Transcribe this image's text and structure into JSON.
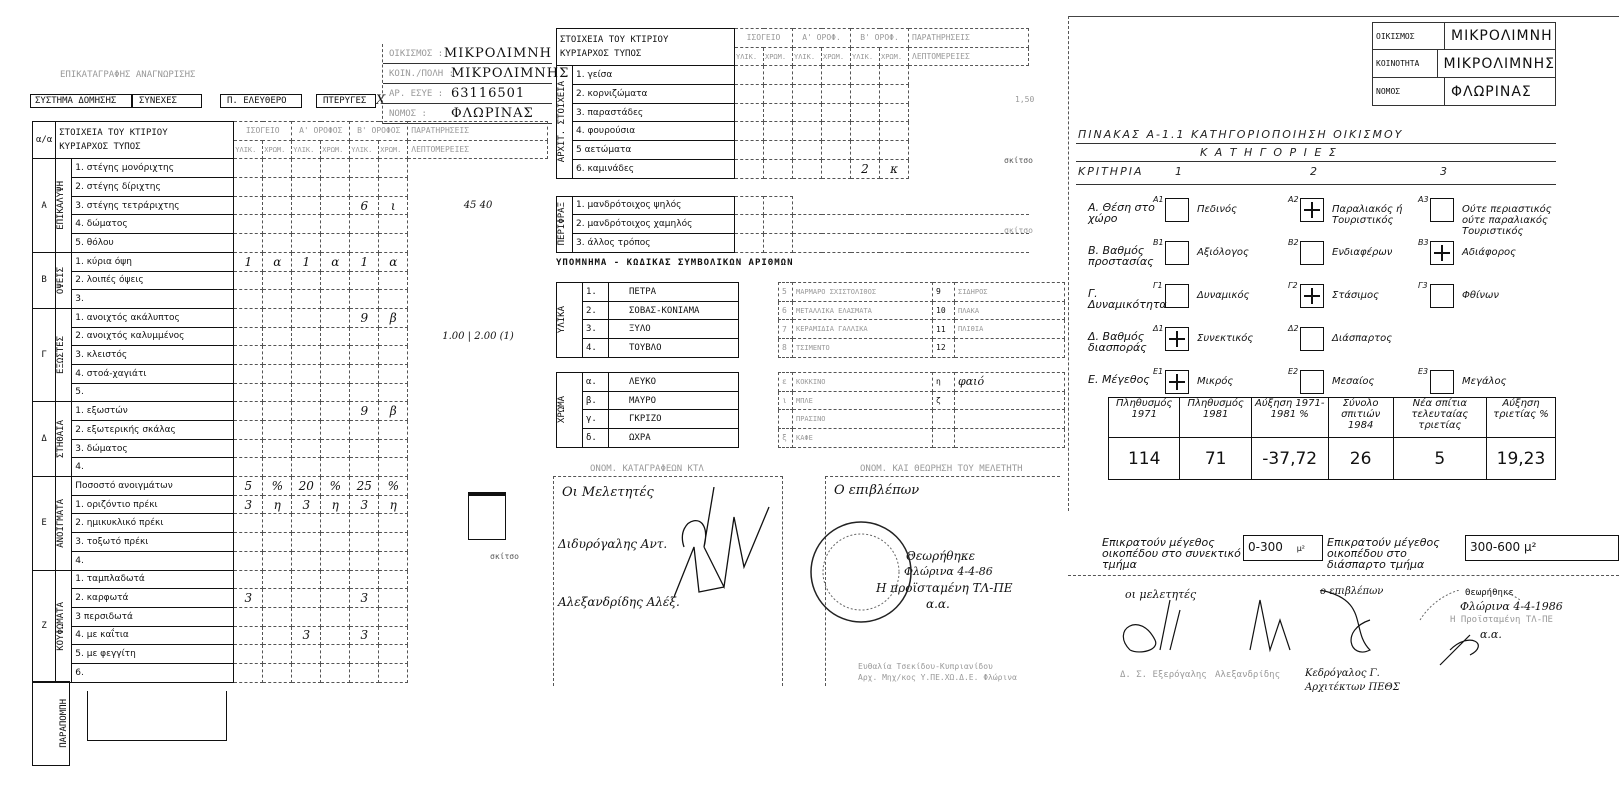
{
  "left": {
    "title": "ΕΠΙΚΑΤΑΓΡΑΦΗΣ ΑΝΑΓΝΩΡΙΣΗΣ",
    "system_label": "ΣΥΣΤΗΜΑ ΔΟΜΗΣΗΣ",
    "options": [
      "ΣΥΝΕΧΕΣ",
      "Π. ΕΛΕΥΘΕΡΟ",
      "ΠΤΕΡΥΓΕΣ"
    ],
    "option_mark": "X",
    "info": [
      {
        "label": "ΟΙΚΙΣΜΟΣ :",
        "value": "ΜΙΚΡΟΛΙΜΝΗ"
      },
      {
        "label": "ΚΟΙΝ./ΠΟΛΗ :",
        "value": "ΜΙΚΡΟΛΙΜΝΗΣ"
      },
      {
        "label": "ΑΡ. ΕΣΥΕ :",
        "value": "63116501"
      },
      {
        "label": "ΝΟΜΟΣ :",
        "value": "ΦΛΩΡΙΝΑΣ"
      }
    ],
    "hdr": {
      "aa": "α/α",
      "s1": "ΣΤΟΙΧΕΙΑ ΤΟΥ ΚΤΙΡΙΟΥ",
      "s2": "ΚΥΡΙΑΡΧΟΣ ΤΥΠΟΣ",
      "floors": [
        "ΙΣΟΓΕΙΟ",
        "Α' ΟΡΟΦΟΣ",
        "Β' ΟΡΟΦΟΣ"
      ],
      "sub": [
        "ΥΛΙΚ.",
        "ΧΡΩΜ."
      ],
      "rem1": "ΠΑΡΑΤΗΡΗΣΕΙΣ",
      "rem2": "ΛΕΠΤΟΜΕΡΕΙΕΣ"
    },
    "groups": [
      {
        "letter": "Α",
        "name": "ΕΠΙΚΑΛΥΨΗ",
        "rows": [
          {
            "label": "1. στέγης μονόριχτης",
            "v": [
              "",
              "",
              "",
              "",
              "",
              ""
            ]
          },
          {
            "label": "2. στέγης δίριχτης",
            "v": [
              "",
              "",
              "",
              "",
              "",
              ""
            ]
          },
          {
            "label": "3. στέγης τετράριχτης",
            "v": [
              "",
              "",
              "",
              "",
              "6",
              "ι"
            ],
            "rem": "45   40"
          },
          {
            "label": "4. δώματος",
            "v": [
              "",
              "",
              "",
              "",
              "",
              ""
            ]
          },
          {
            "label": "5. θόλου",
            "v": [
              "",
              "",
              "",
              "",
              "",
              ""
            ]
          }
        ]
      },
      {
        "letter": "Β",
        "name": "ΟΨΕΙΣ",
        "rows": [
          {
            "label": "1. κύρια όψη",
            "v": [
              "1",
              "α",
              "1",
              "α",
              "1",
              "α"
            ]
          },
          {
            "label": "2. λοιπές όψεις",
            "v": [
              "",
              "",
              "",
              "",
              "",
              ""
            ]
          },
          {
            "label": "3.",
            "v": [
              "",
              "",
              "",
              "",
              "",
              ""
            ]
          }
        ]
      },
      {
        "letter": "Γ",
        "name": "ΕΞΩΣΤΕΣ",
        "rows": [
          {
            "label": "1. ανοιχτός ακάλυπτος",
            "v": [
              "",
              "",
              "",
              "",
              "9",
              "β"
            ]
          },
          {
            "label": "2. ανοιχτός καλυμμένος",
            "v": [
              "",
              "",
              "",
              "",
              "",
              ""
            ],
            "rem": "1.00 | 2.00  (1)"
          },
          {
            "label": "3. κλειστός",
            "v": [
              "",
              "",
              "",
              "",
              "",
              ""
            ]
          },
          {
            "label": "4. στοά-χαγιάτι",
            "v": [
              "",
              "",
              "",
              "",
              "",
              ""
            ]
          },
          {
            "label": "5.",
            "v": [
              "",
              "",
              "",
              "",
              "",
              ""
            ]
          }
        ]
      },
      {
        "letter": "Δ",
        "name": "ΣΤΗΘΑΙΑ",
        "rows": [
          {
            "label": "1. εξωστών",
            "v": [
              "",
              "",
              "",
              "",
              "9",
              "β"
            ]
          },
          {
            "label": "2. εξωτερικής σκάλας",
            "v": [
              "",
              "",
              "",
              "",
              "",
              ""
            ]
          },
          {
            "label": "3. δώματος",
            "v": [
              "",
              "",
              "",
              "",
              "",
              ""
            ]
          },
          {
            "label": "4.",
            "v": [
              "",
              "",
              "",
              "",
              "",
              ""
            ]
          }
        ]
      },
      {
        "letter": "Ε",
        "name": "ΑΝΟΙΓΜΑΤΑ",
        "rows": [
          {
            "label": "Ποσοστό ανοιγμάτων",
            "v": [
              "5",
              "%",
              "20",
              "%",
              "25",
              "%"
            ]
          },
          {
            "label": "1. οριζόντιο πρέκι",
            "v": [
              "3",
              "η",
              "3",
              "η",
              "3",
              "η"
            ]
          },
          {
            "label": "2. ημικυκλικό πρέκι",
            "v": [
              "",
              "",
              "",
              "",
              "",
              ""
            ]
          },
          {
            "label": "3. τοξωτό πρέκι",
            "v": [
              "",
              "",
              "",
              "",
              "",
              ""
            ]
          },
          {
            "label": "4.",
            "v": [
              "",
              "",
              "",
              "",
              "",
              ""
            ]
          }
        ]
      },
      {
        "letter": "Ζ",
        "name": "ΚΟΥΦΩΜΑΤΑ",
        "rows": [
          {
            "label": "1. ταμπλαδωτά",
            "v": [
              "",
              "",
              "",
              "",
              "",
              ""
            ]
          },
          {
            "label": "2. καρφωτά",
            "v": [
              "3",
              "",
              "",
              "",
              "3",
              ""
            ]
          },
          {
            "label": "3 περσιδωτά",
            "v": [
              "",
              "",
              "",
              "",
              "",
              ""
            ]
          },
          {
            "label": "4. με καΐτια",
            "v": [
              "",
              "",
              "3",
              "",
              "3",
              ""
            ]
          },
          {
            "label": "5. με φεγγίτη",
            "v": [
              "",
              "",
              "",
              "",
              "",
              ""
            ]
          },
          {
            "label": "6.",
            "v": [
              "",
              "",
              "",
              "",
              "",
              ""
            ]
          }
        ]
      }
    ],
    "footer_group": "ΠΑΡΑΠΟΜΠΗ",
    "sketch_label": "σκίτσο"
  },
  "middle": {
    "hdr": {
      "s1": "ΣΤΟΙΧΕΙΑ ΤΟΥ ΚΤΙΡΙΟΥ",
      "s2": "ΚΥΡΙΑΡΧΟΣ ΤΥΠΟΣ",
      "floors": [
        "ΙΣΟΓΕΙΟ",
        "Α' ΟΡΟΦ.",
        "Β' ΟΡΟΦ."
      ],
      "sub": [
        "ΥΛΙΚ.",
        "ΧΡΩΜ."
      ],
      "rem1": "ΠΑΡΑΤΗΡΗΣΕΙΣ",
      "rem2": "ΛΕΠΤΟΜΕΡΕΙΕΣ"
    },
    "groups": [
      {
        "name": "ΑΡΧΙΤ. ΣΤΟΙΧΕΙΑ",
        "rows": [
          {
            "label": "1. γείσα",
            "v": [
              "",
              "",
              "",
              "",
              "",
              ""
            ]
          },
          {
            "label": "2. κορνιζώματα",
            "v": [
              "",
              "",
              "",
              "",
              "",
              ""
            ]
          },
          {
            "label": "3. παραστάδες",
            "v": [
              "",
              "",
              "",
              "",
              "",
              ""
            ]
          },
          {
            "label": "4. φουρούσια",
            "v": [
              "",
              "",
              "",
              "",
              "",
              ""
            ]
          },
          {
            "label": "5 αετώματα",
            "v": [
              "",
              "",
              "",
              "",
              "",
              ""
            ]
          },
          {
            "label": "6. καμινάδες",
            "v": [
              "",
              "",
              "",
              "",
              "2",
              "κ"
            ]
          }
        ]
      },
      {
        "name": "ΠΕΡΙΦΡΑΞ",
        "rows": [
          {
            "label": "1. μανδρότοιχος ψηλός",
            "v": [
              "",
              ""
            ]
          },
          {
            "label": "2. μανδρότοιχος χαμηλός",
            "v": [
              "",
              ""
            ]
          },
          {
            "label": "3. άλλος τρόπος",
            "v": [
              "",
              ""
            ]
          }
        ]
      }
    ],
    "sketch_label": "σκίτσο",
    "chimney_note": "1,50",
    "legend_title": "ΥΠΟΜΝΗΜΑ - ΚΩΔΙΚΑΣ ΣΥΜΒΟΛΙΚΩΝ ΑΡΙΘΜΩΝ",
    "materials": {
      "name": "ΥΛΙΚΑ",
      "rows": [
        {
          "n": "1.",
          "v": "ΠΕΤΡΑ"
        },
        {
          "n": "2.",
          "v": "ΣΟΒΑΣ-ΚΟΝΙΑΜΑ"
        },
        {
          "n": "3.",
          "v": "ΞΥΛΟ"
        },
        {
          "n": "4.",
          "v": "ΤΟΥΒΛΟ"
        }
      ],
      "extra": [
        {
          "n": "5",
          "v": "ΜΑΡΜΑΡΟ ΣΧΙΣΤΟΛΙΘΟΣ"
        },
        {
          "n": "6",
          "v": "ΜΕΤΑΛΛΙΚΑ ΕΛΑΣΜΑΤΑ"
        },
        {
          "n": "7",
          "v": "ΚΕΡΑΜΙΔΙΑ ΓΑΛΛΙΚΑ"
        },
        {
          "n": "8",
          "v": "ΤΣΙΜΕΝΤΟ"
        }
      ],
      "extra2": [
        {
          "n": "9",
          "v": "ΣΙΔΗΡΟΣ"
        },
        {
          "n": "10",
          "v": "ΠΛΑΚΑ"
        },
        {
          "n": "11",
          "v": "ΠΛΙΘΙΑ"
        },
        {
          "n": "12",
          "v": ""
        }
      ]
    },
    "colors": {
      "name": "ΧΡΩΜΑ",
      "rows": [
        {
          "n": "α.",
          "v": "ΛΕΥΚΟ"
        },
        {
          "n": "β.",
          "v": "ΜΑΥΡΟ"
        },
        {
          "n": "γ.",
          "v": "ΓΚΡΙΖΟ"
        },
        {
          "n": "δ.",
          "v": "ΩΧΡΑ"
        }
      ],
      "extra": [
        {
          "n": "ε",
          "v": "ΚΟΚΚΙΝΟ"
        },
        {
          "n": "ι",
          "v": "ΜΠΛΕ"
        },
        {
          "n": "",
          "v": "ΠΡΑΣΙΝΟ"
        },
        {
          "n": "ξ",
          "v": "ΚΑΦΕ"
        }
      ],
      "extra2": [
        {
          "n": "η",
          "v": "φαιό"
        },
        {
          "n": "ζ",
          "v": ""
        },
        {
          "n": "",
          "v": ""
        },
        {
          "n": "",
          "v": ""
        }
      ]
    },
    "sig_left_title": "ΟΝΟΜ. ΚΑΤΑΓΡΑΦΕΩΝ ΚΤΛ",
    "sig_left_lines": [
      "Οι Μελετητές",
      "Διδυρόγαλης Αντ.",
      "Αλεξανδρίδης Αλέξ."
    ],
    "sig_right_title": "ΟΝΟΜ. ΚΑΙ ΘΕΩΡΗΣΗ ΤΟΥ ΜΕΛΕΤΗΤΗ",
    "sig_right_lines": [
      "Ο επιβλέπων",
      "Θεωρήθηκε",
      "Φλώρινα 4-4-86",
      "Η προϊσταμένη ΤΛ-ΠΕ",
      "α.α."
    ],
    "sig_right_footer": [
      "Ευθαλία Τσεκίδου-Κυπριανίδου",
      "Αρχ. Μηχ/κος Υ.ΠΕ.ΧΩ.Δ.Ε. Φλώρινα"
    ]
  },
  "right": {
    "info": [
      {
        "label": "ΟΙΚΙΣΜΟΣ",
        "value": "ΜΙΚΡΟΛΙΜΝΗ"
      },
      {
        "label": "ΚΟΙΝΟΤΗΤΑ",
        "value": "ΜΙΚΡΟΛΙΜΝΗΣ"
      },
      {
        "label": "ΝΟΜΟΣ",
        "value": "ΦΛΩΡΙΝΑΣ"
      }
    ],
    "table_title": "ΠΙΝΑΚΑΣ Α-1.1  ΚΑΤΗΓΟΡΙΟΠΟΙΗΣΗ ΟΙΚΙΣΜΟΥ",
    "categories_label": "Κ   Α   Τ   Η   Γ   Ο   Ρ   Ι   Ε   Σ",
    "criteria_label": "ΚΡΙΤΗΡΙΑ",
    "col_numbers": [
      "1",
      "2",
      "3"
    ],
    "criteria": [
      {
        "name": "Α. Θέση στο χώρο",
        "options": [
          {
            "code": "Α1",
            "label": "Πεδινός",
            "checked": false
          },
          {
            "code": "Α2",
            "label": "Παραλιακός ή Τουριστικός",
            "checked": true
          },
          {
            "code": "Α3",
            "label": "Ούτε περιαστικός ούτε παραλιακός Τουριστικός",
            "checked": false
          }
        ]
      },
      {
        "name": "Β. Βαθμός προστασίας",
        "options": [
          {
            "code": "Β1",
            "label": "Αξιόλογος",
            "checked": false
          },
          {
            "code": "Β2",
            "label": "Ενδιαφέρων",
            "checked": false
          },
          {
            "code": "Β3",
            "label": "Αδιάφορος",
            "checked": true
          }
        ]
      },
      {
        "name": "Γ. Δυναμικότητα",
        "options": [
          {
            "code": "Γ1",
            "label": "Δυναμικός",
            "checked": false
          },
          {
            "code": "Γ2",
            "label": "Στάσιμος",
            "checked": true
          },
          {
            "code": "Γ3",
            "label": "Φθίνων",
            "checked": false
          }
        ]
      },
      {
        "name": "Δ. Βαθμός διασποράς",
        "options": [
          {
            "code": "Δ1",
            "label": "Συνεκτικός",
            "checked": true
          },
          {
            "code": "Δ2",
            "label": "Διάσπαρτος",
            "checked": false
          }
        ]
      },
      {
        "name": "Ε. Μέγεθος",
        "options": [
          {
            "code": "Ε1",
            "label": "Μικρός",
            "checked": true
          },
          {
            "code": "Ε2",
            "label": "Μεσαίος",
            "checked": false
          },
          {
            "code": "Ε3",
            "label": "Μεγάλος",
            "checked": false
          }
        ]
      }
    ],
    "pop_headers": [
      "Πληθυσμός 1971",
      "Πληθυσμός 1981",
      "Αύξηση 1971-1981 %",
      "Σύνολο σπιτιών 1984",
      "Νέα σπίτια τελευταίας τριετίας",
      "Αύξηση τριετίας %"
    ],
    "pop_values": [
      "114",
      "71",
      "-37,72",
      "26",
      "5",
      "19,23"
    ],
    "plot_left_label": "Επικρατούν μέγεθος οικοπέδου στο συνεκτικό τμήμα",
    "plot_left_value": "0-300",
    "plot_left_unit": "μ²",
    "plot_right_label": "Επικρατούν μέγεθος οικοπέδου στο διάσπαρτο τμήμα",
    "plot_right_value": "300-600 μ²",
    "sig_lines": [
      "οι μελετητές",
      "ο επιβλέπων",
      "Θεωρήθηκε",
      "Φλώρινα 4-4-1986",
      "Η Προϊσταμένη ΤΛ-ΠΕ",
      "α.α."
    ],
    "sig_names": [
      "Δ. Σ. Εξερόγαλης",
      "Αλεξανδρίδης",
      "Κεδρόγαλος Γ.",
      "Αρχιτέκτων ΠΕΘΣ"
    ]
  }
}
